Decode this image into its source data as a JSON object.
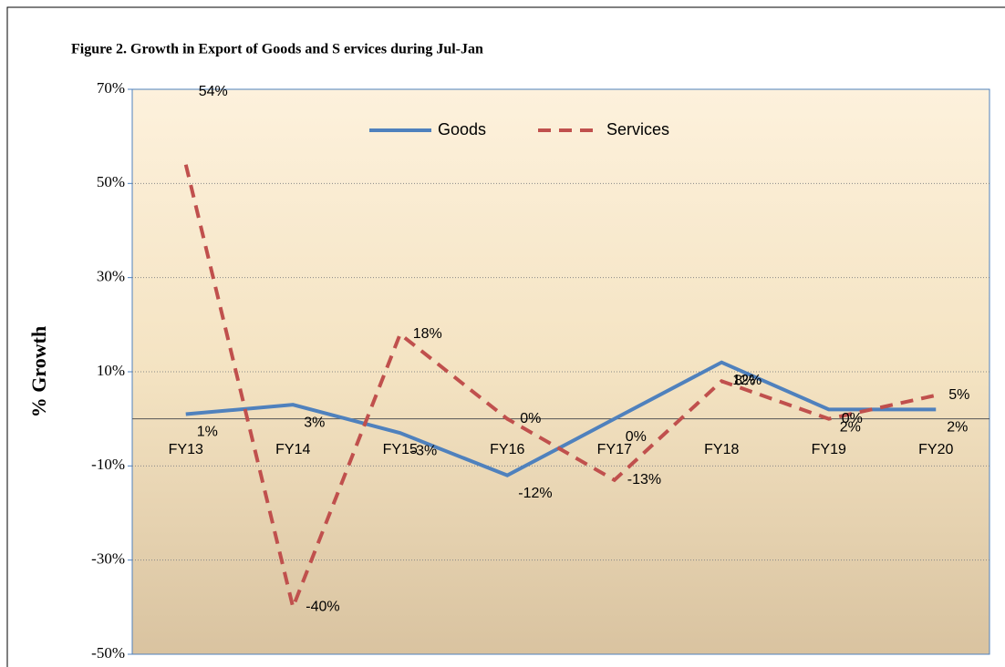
{
  "chart_data": {
    "type": "line",
    "title": "Figure 2. Growth  in Export  of Goods  and S ervices during Jul-Jan",
    "y_label": "% Growth",
    "categories": [
      "FY13",
      "FY14",
      "FY15",
      "FY16",
      "FY17",
      "FY18",
      "FY19",
      "FY20"
    ],
    "series": [
      {
        "name": "Goods",
        "color": "#4f81bd",
        "dash": "solid",
        "values": [
          1,
          3,
          -3,
          -12,
          0,
          12,
          2,
          2
        ],
        "value_labels": [
          "1%",
          "3%",
          "-3%",
          "-12%",
          "0%",
          "12%",
          "2%",
          "2%"
        ]
      },
      {
        "name": "Services",
        "color": "#c0504d",
        "dash": "dashed",
        "values": [
          54,
          -40,
          18,
          0,
          -13,
          8,
          0,
          5
        ],
        "value_labels": [
          "54%",
          "-40%",
          "18%",
          "0%",
          "-13%",
          "8%",
          "0%",
          "5%"
        ]
      }
    ],
    "ylim": [
      -50,
      70
    ],
    "yticks": [
      {
        "value": -50,
        "label": "-50%"
      },
      {
        "value": -30,
        "label": "-30%"
      },
      {
        "value": -10,
        "label": "-10%"
      },
      {
        "value": 10,
        "label": "10%"
      },
      {
        "value": 30,
        "label": "30%"
      },
      {
        "value": 50,
        "label": "50%"
      },
      {
        "value": 70,
        "label": "70%"
      }
    ],
    "grid": true,
    "legend": "top"
  }
}
